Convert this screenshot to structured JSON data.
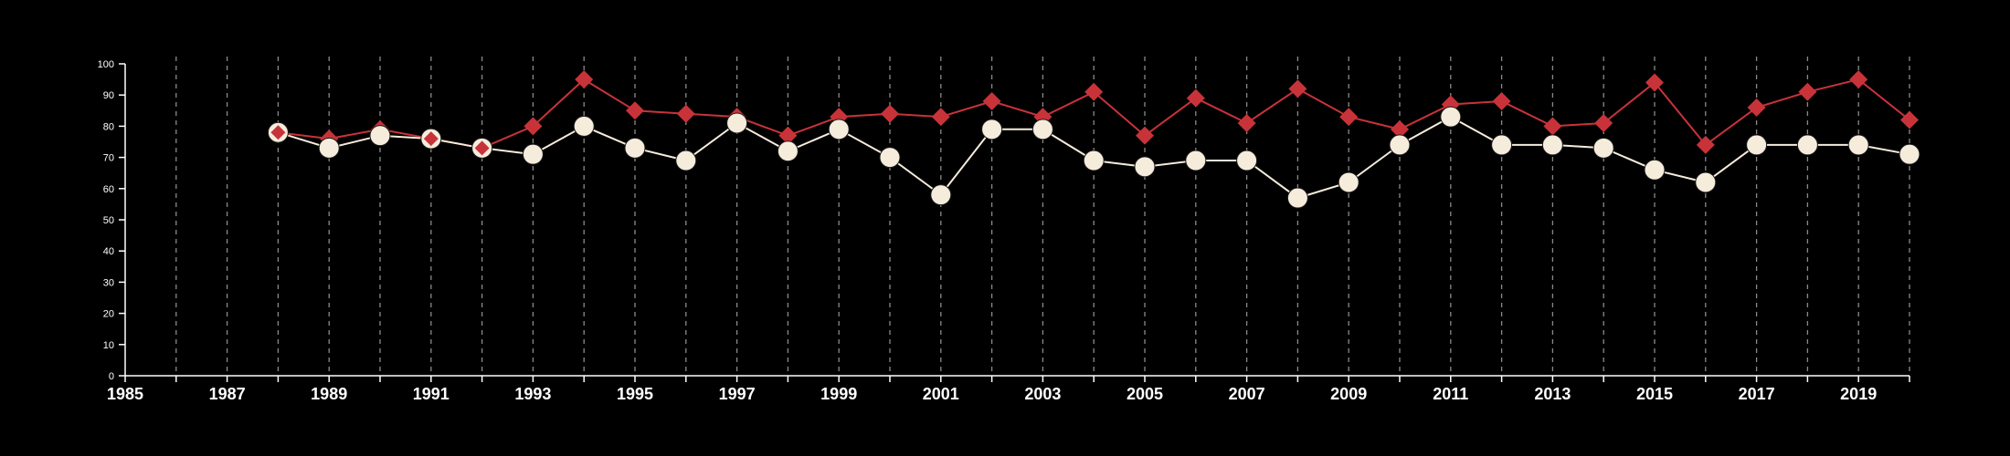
{
  "chart_data": {
    "type": "line",
    "title": "",
    "xlabel": "",
    "ylabel": "",
    "xlim": [
      1985,
      2020
    ],
    "ylim": [
      0,
      100
    ],
    "x_ticks_labeled": [
      1985,
      1987,
      1989,
      1991,
      1993,
      1995,
      1997,
      1999,
      2001,
      2003,
      2005,
      2007,
      2009,
      2011,
      2013,
      2015,
      2017,
      2019
    ],
    "y_ticks": [
      0,
      10,
      20,
      30,
      40,
      50,
      60,
      70,
      80,
      90,
      100
    ],
    "grid": "vertical dashed lines at each year",
    "legend": "none",
    "x": [
      1988,
      1989,
      1990,
      1991,
      1992,
      1993,
      1994,
      1995,
      1996,
      1997,
      1998,
      1999,
      2000,
      2001,
      2002,
      2003,
      2004,
      2005,
      2006,
      2007,
      2008,
      2009,
      2010,
      2011,
      2012,
      2013,
      2014,
      2015,
      2016,
      2017,
      2018,
      2019,
      2020
    ],
    "series": [
      {
        "marker": "diamond",
        "color": "#c8333a",
        "values": [
          78,
          76,
          79,
          76,
          73,
          80,
          95,
          85,
          84,
          83,
          77,
          83,
          84,
          83,
          88,
          83,
          91,
          77,
          89,
          81,
          92,
          83,
          79,
          87,
          88,
          80,
          81,
          94,
          74,
          86,
          91,
          95,
          82
        ]
      },
      {
        "marker": "circle",
        "color": "#f6ecdc",
        "values": [
          78,
          73,
          77,
          76,
          73,
          71,
          80,
          73,
          69,
          81,
          72,
          79,
          70,
          58,
          79,
          79,
          69,
          67,
          69,
          69,
          57,
          62,
          74,
          83,
          74,
          74,
          73,
          66,
          62,
          74,
          74,
          74,
          71
        ]
      }
    ]
  }
}
